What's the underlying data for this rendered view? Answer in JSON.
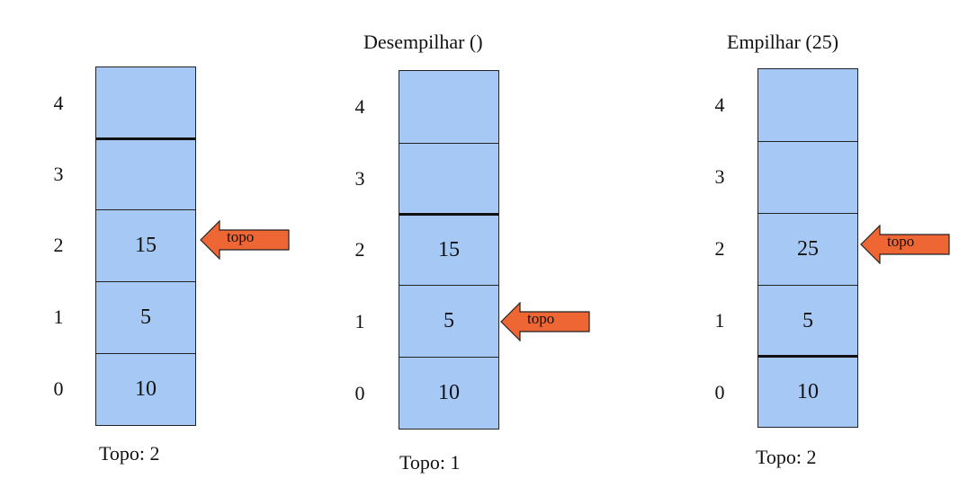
{
  "colors": {
    "cell_fill": "#a6c8f5",
    "arrow_fill": "#ee6633",
    "border": "#222222"
  },
  "panels": [
    {
      "title": "",
      "indices": [
        "4",
        "3",
        "2",
        "1",
        "0"
      ],
      "cells": [
        "",
        "",
        "15",
        "5",
        "10"
      ],
      "arrow_label": "topo",
      "top_index": 2,
      "footer": "Topo: 2"
    },
    {
      "title": "Desempilhar ()",
      "indices": [
        "4",
        "3",
        "2",
        "1",
        "0"
      ],
      "cells": [
        "",
        "",
        "15",
        "5",
        "10"
      ],
      "arrow_label": "topo",
      "top_index": 1,
      "footer": "Topo: 1"
    },
    {
      "title": "Empilhar (25)",
      "indices": [
        "4",
        "3",
        "2",
        "1",
        "0"
      ],
      "cells": [
        "",
        "",
        "25",
        "5",
        "10"
      ],
      "arrow_label": "topo",
      "top_index": 2,
      "footer": "Topo: 2"
    }
  ]
}
